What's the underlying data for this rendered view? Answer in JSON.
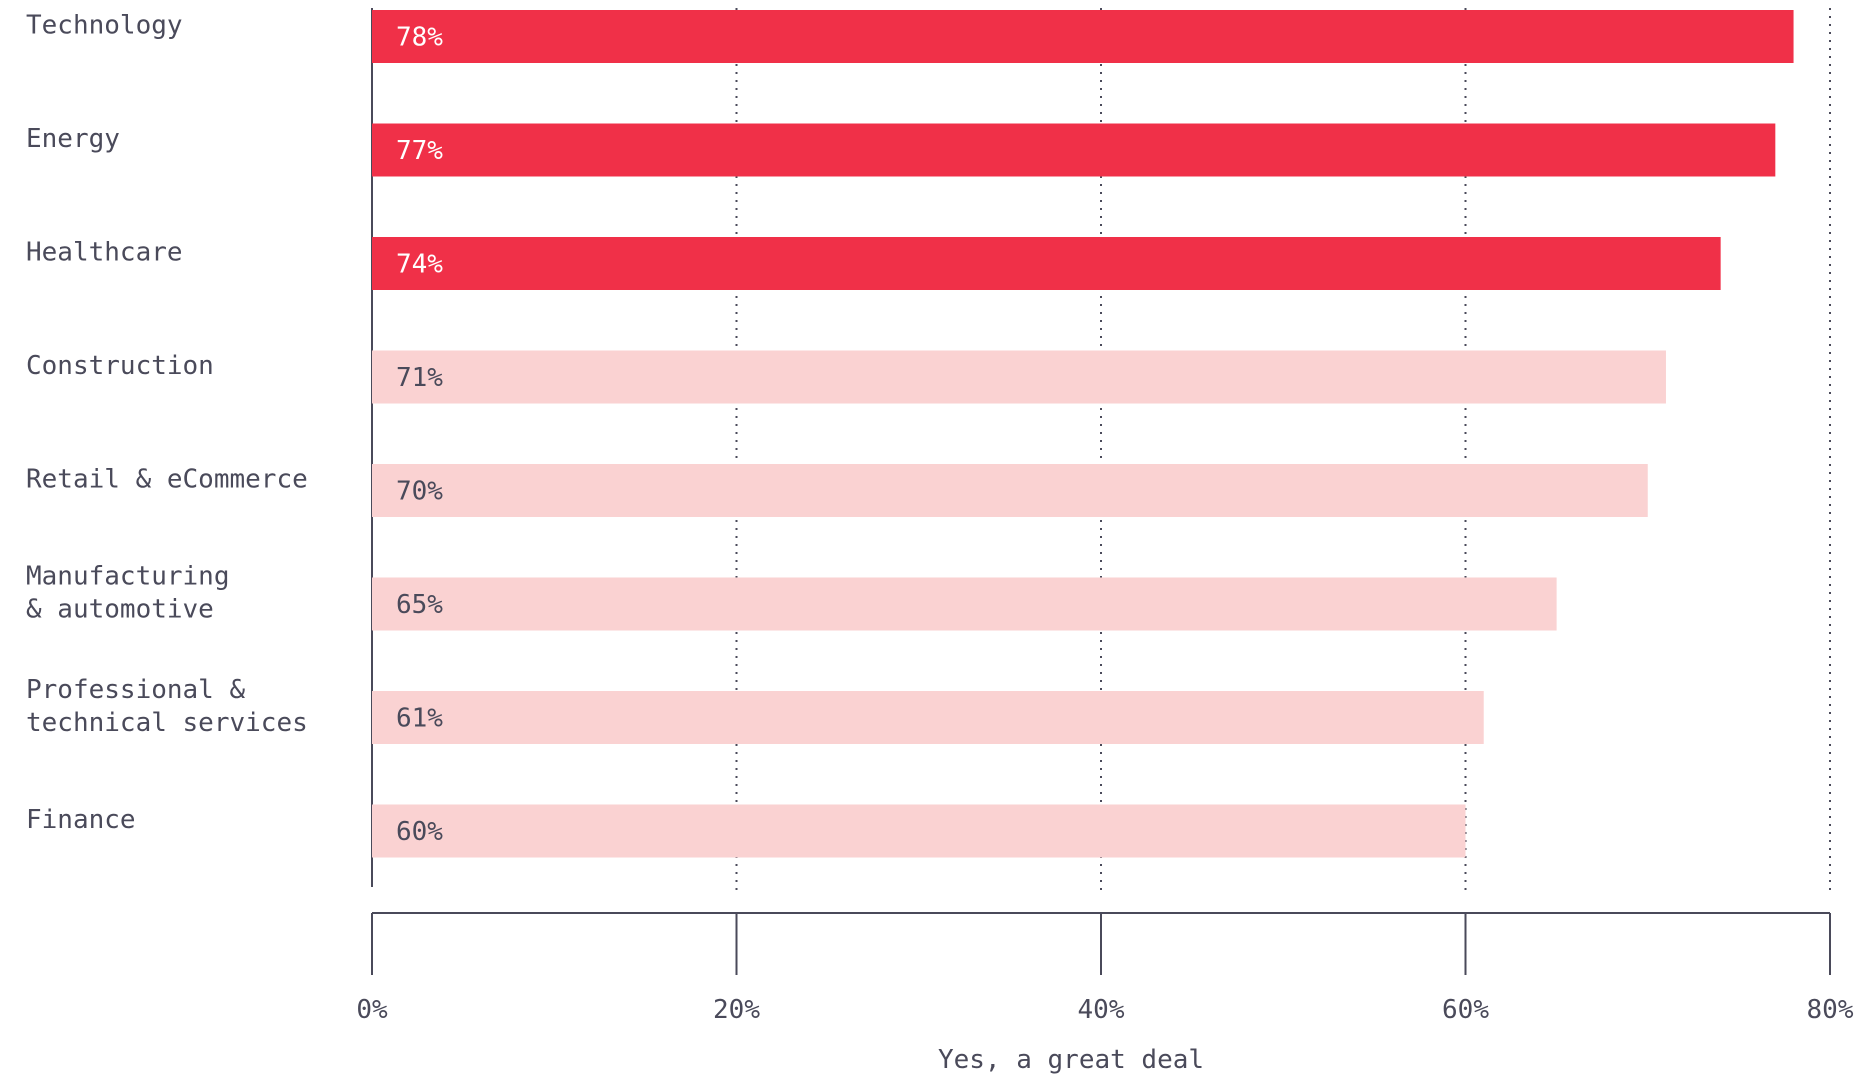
{
  "chart_data": {
    "type": "bar",
    "orientation": "horizontal",
    "categories": [
      "Technology",
      "Energy",
      "Healthcare",
      "Construction",
      "Retail & eCommerce",
      "Manufacturing\n& automotive",
      "Professional &\ntechnical services",
      "Finance"
    ],
    "values": [
      78,
      77,
      74,
      71,
      70,
      65,
      61,
      60
    ],
    "value_labels": [
      "78%",
      "77%",
      "74%",
      "71%",
      "70%",
      "65%",
      "61%",
      "60%"
    ],
    "highlighted": [
      true,
      true,
      true,
      false,
      false,
      false,
      false,
      false
    ],
    "xlabel": "Yes, a great deal",
    "xlim": [
      0,
      80
    ],
    "xticks": [
      0,
      20,
      40,
      60,
      80
    ],
    "xtick_labels": [
      "0%",
      "20%",
      "40%",
      "60%",
      "80%"
    ],
    "grid": "vertical dotted",
    "colors": {
      "highlight": "#f03048",
      "normal": "#fad2d2",
      "highlight_text": "#ffffff",
      "normal_text": "#4a4a5a",
      "axis": "#4a4a5a"
    }
  }
}
